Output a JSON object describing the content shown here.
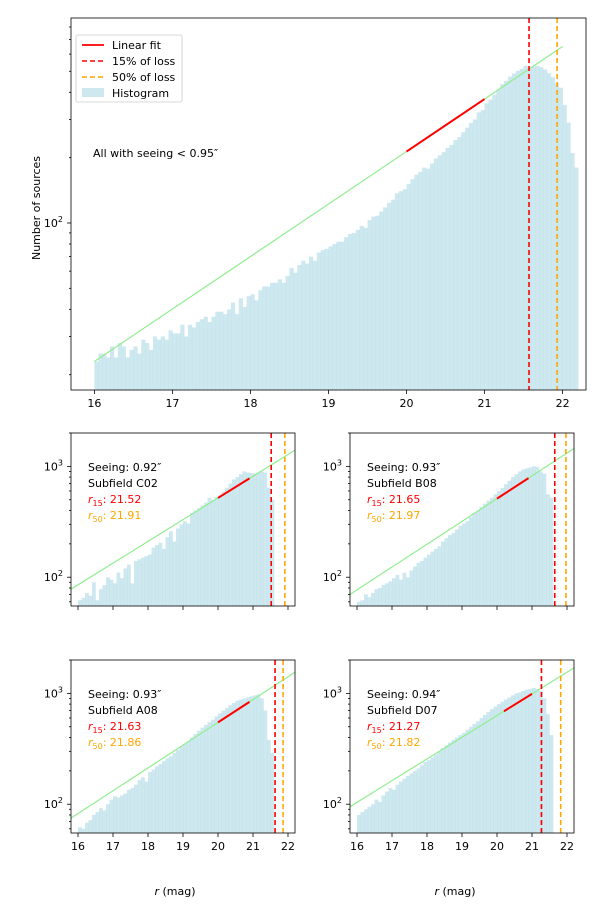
{
  "chart_data": [
    {
      "type": "bar",
      "id": "main",
      "title": "",
      "xlabel": "",
      "ylabel": "Number of sources",
      "xlim": [
        15.7,
        22.3
      ],
      "ylim": [
        17,
        880
      ],
      "yscale": "log",
      "xticks": [
        "16",
        "17",
        "18",
        "19",
        "20",
        "21",
        "22"
      ],
      "yticks": [
        {
          "value": 100,
          "base": "10",
          "exp": "2"
        }
      ],
      "annotation": "All with seeing < 0.95″",
      "legend": {
        "position": "top-left",
        "entries": [
          {
            "label": "Linear fit",
            "color": "#ff0000",
            "style": "solid"
          },
          {
            "label": "15% of loss",
            "color": "#ff0000",
            "style": "dashed"
          },
          {
            "label": "50% of loss",
            "color": "#ffa500",
            "style": "dashed"
          },
          {
            "label": "Histogram",
            "color": "#add8e6",
            "style": "patch"
          }
        ]
      },
      "histogram": {
        "start": 16.0,
        "width": 0.05,
        "values": [
          23,
          25,
          25,
          24,
          27,
          24,
          28,
          27,
          24,
          26,
          27,
          25,
          29,
          28,
          26,
          30,
          29,
          30,
          29,
          32,
          31,
          31,
          34,
          30,
          34,
          33,
          35,
          36,
          37,
          35,
          37,
          39,
          39,
          38,
          40,
          43,
          38,
          45,
          41,
          46,
          47,
          44,
          49,
          51,
          51,
          53,
          53,
          55,
          53,
          57,
          62,
          59,
          64,
          67,
          65,
          70,
          67,
          73,
          75,
          76,
          78,
          80,
          82,
          82,
          86,
          89,
          90,
          93,
          97,
          95,
          103,
          107,
          108,
          113,
          118,
          124,
          128,
          137,
          140,
          143,
          151,
          159,
          167,
          172,
          180,
          178,
          188,
          198,
          205,
          212,
          222,
          229,
          241,
          249,
          262,
          275,
          289,
          300,
          323,
          331,
          356,
          370,
          390,
          411,
          436,
          452,
          473,
          488,
          502,
          513,
          530,
          520,
          525,
          530,
          522,
          510,
          490,
          470,
          440,
          420,
          350,
          290,
          210,
          180
        ]
      },
      "fit_line": {
        "x0": 16.0,
        "y0": 23,
        "x1": 22.0,
        "y1": 650,
        "color": "#90ee90"
      },
      "fit_segment": {
        "x0": 20.0,
        "x1": 21.0,
        "color": "#ff0000"
      },
      "r15": 21.57,
      "r50": 21.93
    },
    {
      "type": "bar",
      "id": "c02",
      "xlim": [
        15.8,
        22.2
      ],
      "ylim": [
        55,
        2000
      ],
      "yscale": "log",
      "xticks": [],
      "yticks": [
        {
          "value": 100,
          "base": "10",
          "exp": "2"
        },
        {
          "value": 1000,
          "base": "10",
          "exp": "3"
        }
      ],
      "seeing_label": "Seeing: 0.92″",
      "subfield_label": "Subfield C02",
      "r15_sym": "r",
      "r15_sub": "15",
      "r15_val": ": 21.52",
      "r50_sym": "r",
      "r50_sub": "50",
      "r50_val": ": 21.91",
      "histogram": {
        "start": 16.0,
        "width": 0.1,
        "values": [
          62,
          65,
          72,
          68,
          90,
          62,
          78,
          85,
          100,
          95,
          88,
          110,
          98,
          120,
          130,
          88,
          140,
          145,
          150,
          155,
          160,
          185,
          195,
          205,
          180,
          230,
          260,
          210,
          275,
          300,
          320,
          305,
          380,
          400,
          420,
          445,
          470,
          520,
          500,
          530,
          550,
          590,
          640,
          700,
          760,
          800,
          850,
          900,
          880,
          870,
          860,
          880,
          900,
          880,
          640,
          500
        ]
      },
      "fit_line": {
        "x0": 15.8,
        "y0": 78,
        "x1": 22.2,
        "y1": 1400,
        "color": "#90ee90"
      },
      "fit_segment": {
        "x0": 20.0,
        "x1": 20.9,
        "color": "#ff0000"
      },
      "r15": 21.52,
      "r50": 21.91
    },
    {
      "type": "bar",
      "id": "b08",
      "xlim": [
        15.8,
        22.2
      ],
      "ylim": [
        55,
        2000
      ],
      "yscale": "log",
      "xticks": [],
      "yticks": [
        {
          "value": 100,
          "base": "10",
          "exp": "2"
        },
        {
          "value": 1000,
          "base": "10",
          "exp": "3"
        }
      ],
      "seeing_label": "Seeing: 0.93″",
      "subfield_label": "Subfield B08",
      "r15_sym": "r",
      "r15_sub": "15",
      "r15_val": ": 21.65",
      "r50_sym": "r",
      "r50_sub": "50",
      "r50_val": ": 21.97",
      "histogram": {
        "start": 16.0,
        "width": 0.1,
        "values": [
          60,
          62,
          70,
          66,
          72,
          78,
          80,
          85,
          88,
          92,
          98,
          105,
          95,
          110,
          100,
          115,
          125,
          135,
          140,
          150,
          160,
          170,
          180,
          190,
          210,
          225,
          240,
          250,
          270,
          290,
          305,
          320,
          350,
          380,
          400,
          430,
          460,
          490,
          520,
          560,
          600,
          640,
          690,
          740,
          800,
          850,
          900,
          940,
          960,
          980,
          1000,
          990,
          900,
          860,
          560,
          520
        ]
      },
      "fit_line": {
        "x0": 15.8,
        "y0": 70,
        "x1": 22.2,
        "y1": 1450,
        "color": "#90ee90"
      },
      "fit_segment": {
        "x0": 20.0,
        "x1": 20.9,
        "color": "#ff0000"
      },
      "r15": 21.65,
      "r50": 21.97
    },
    {
      "type": "bar",
      "id": "a08",
      "xlabel": "r (mag)",
      "xlim": [
        15.8,
        22.2
      ],
      "ylim": [
        55,
        2000
      ],
      "yscale": "log",
      "xticks": [
        "16",
        "17",
        "18",
        "19",
        "20",
        "21",
        "22"
      ],
      "yticks": [
        {
          "value": 100,
          "base": "10",
          "exp": "2"
        },
        {
          "value": 1000,
          "base": "10",
          "exp": "3"
        }
      ],
      "seeing_label": "Seeing: 0.93″",
      "subfield_label": "Subfield A08",
      "r15_sym": "r",
      "r15_sub": "15",
      "r15_val": ": 21.63",
      "r50_sym": "r",
      "r50_sub": "50",
      "r50_val": ": 21.86",
      "histogram": {
        "start": 16.0,
        "width": 0.1,
        "values": [
          62,
          60,
          68,
          72,
          80,
          85,
          92,
          88,
          100,
          110,
          118,
          115,
          120,
          125,
          135,
          140,
          150,
          165,
          175,
          160,
          195,
          205,
          220,
          230,
          245,
          260,
          270,
          290,
          310,
          330,
          350,
          370,
          400,
          430,
          460,
          490,
          520,
          550,
          580,
          620,
          660,
          700,
          740,
          780,
          820,
          860,
          880,
          900,
          920,
          940,
          960,
          980,
          900,
          700,
          380,
          290
        ]
      },
      "fit_line": {
        "x0": 15.8,
        "y0": 75,
        "x1": 22.2,
        "y1": 1550,
        "color": "#90ee90"
      },
      "fit_segment": {
        "x0": 20.0,
        "x1": 20.9,
        "color": "#ff0000"
      },
      "r15": 21.63,
      "r50": 21.86
    },
    {
      "type": "bar",
      "id": "d07",
      "xlabel": "r (mag)",
      "xlim": [
        15.8,
        22.2
      ],
      "ylim": [
        55,
        2000
      ],
      "yscale": "log",
      "xticks": [
        "16",
        "17",
        "18",
        "19",
        "20",
        "21",
        "22"
      ],
      "yticks": [
        {
          "value": 100,
          "base": "10",
          "exp": "2"
        },
        {
          "value": 1000,
          "base": "10",
          "exp": "3"
        }
      ],
      "seeing_label": "Seeing: 0.94″",
      "subfield_label": "Subfield D07",
      "r15_sym": "r",
      "r15_sub": "15",
      "r15_val": ": 21.27",
      "r50_sym": "r",
      "r50_sub": "50",
      "r50_val": ": 21.82",
      "histogram": {
        "start": 16.0,
        "width": 0.1,
        "values": [
          80,
          85,
          90,
          95,
          100,
          110,
          105,
          120,
          130,
          140,
          135,
          150,
          160,
          170,
          180,
          190,
          200,
          210,
          225,
          240,
          250,
          265,
          280,
          300,
          320,
          340,
          360,
          380,
          400,
          420,
          440,
          470,
          500,
          530,
          560,
          600,
          640,
          680,
          720,
          760,
          800,
          840,
          880,
          920,
          960,
          1000,
          1020,
          1050,
          1080,
          1100,
          1120,
          1100,
          1050,
          900,
          650,
          420
        ]
      },
      "fit_line": {
        "x0": 15.8,
        "y0": 95,
        "x1": 22.2,
        "y1": 1700,
        "color": "#90ee90"
      },
      "fit_segment": {
        "x0": 20.2,
        "x1": 21.0,
        "color": "#ff0000"
      },
      "r15": 21.27,
      "r50": 21.82
    }
  ]
}
